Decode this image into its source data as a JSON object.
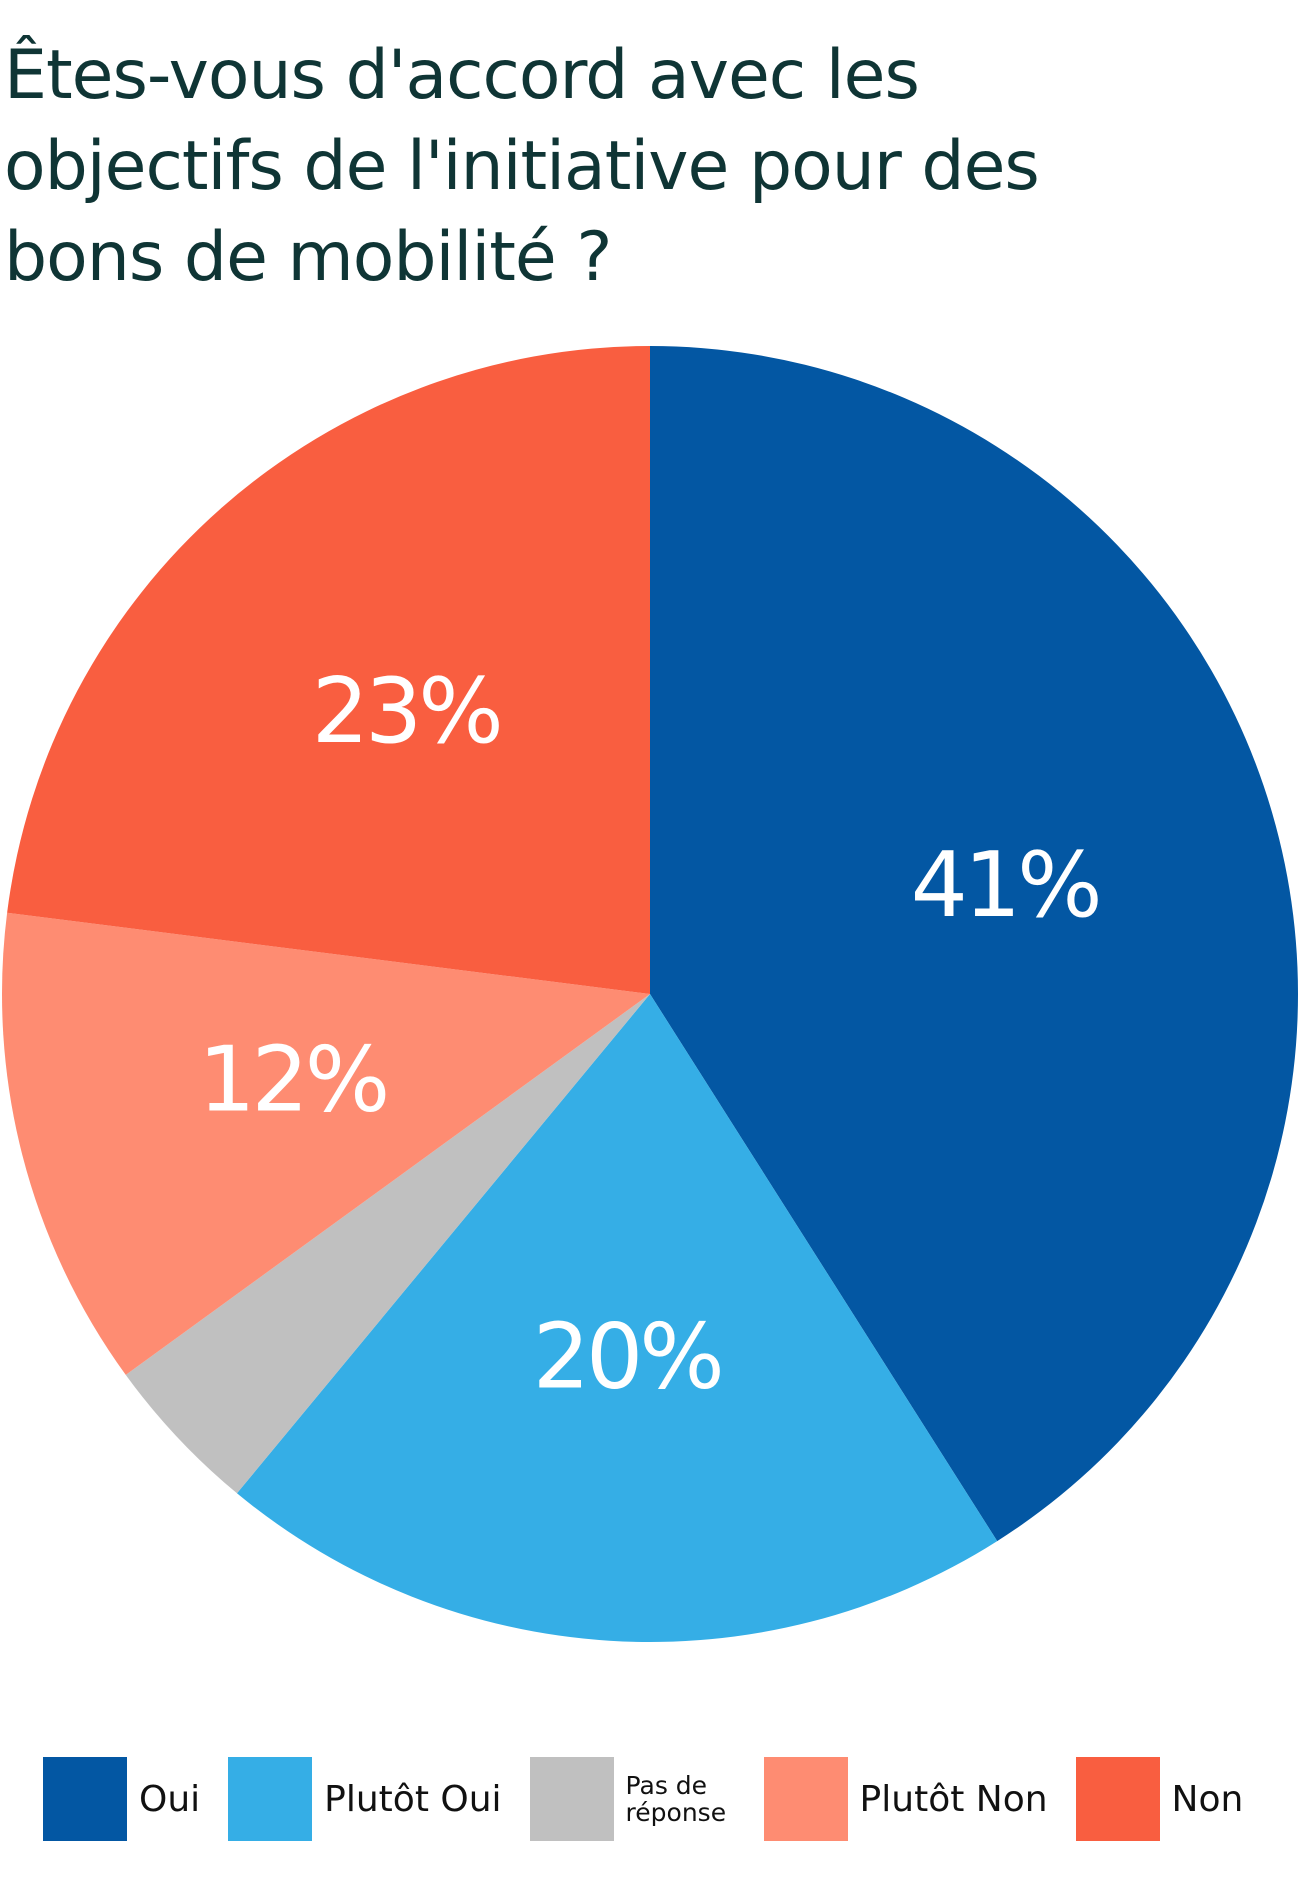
{
  "chart_data": {
    "type": "pie",
    "title": "Êtes-vous d'accord avec les objectifs de l'initiative pour des bons de mobilité ?",
    "categories": [
      "Oui",
      "Plutôt Oui",
      "Pas de réponse",
      "Plutôt Non",
      "Non"
    ],
    "values": [
      41,
      20,
      4,
      12,
      23
    ],
    "value_labels": [
      "41%",
      "20%",
      null,
      "12%",
      "23%"
    ],
    "colors": [
      "#0357a3",
      "#35aee6",
      "#c0c0c0",
      "#fe8c72",
      "#f95e40"
    ],
    "legend": "bottom"
  }
}
